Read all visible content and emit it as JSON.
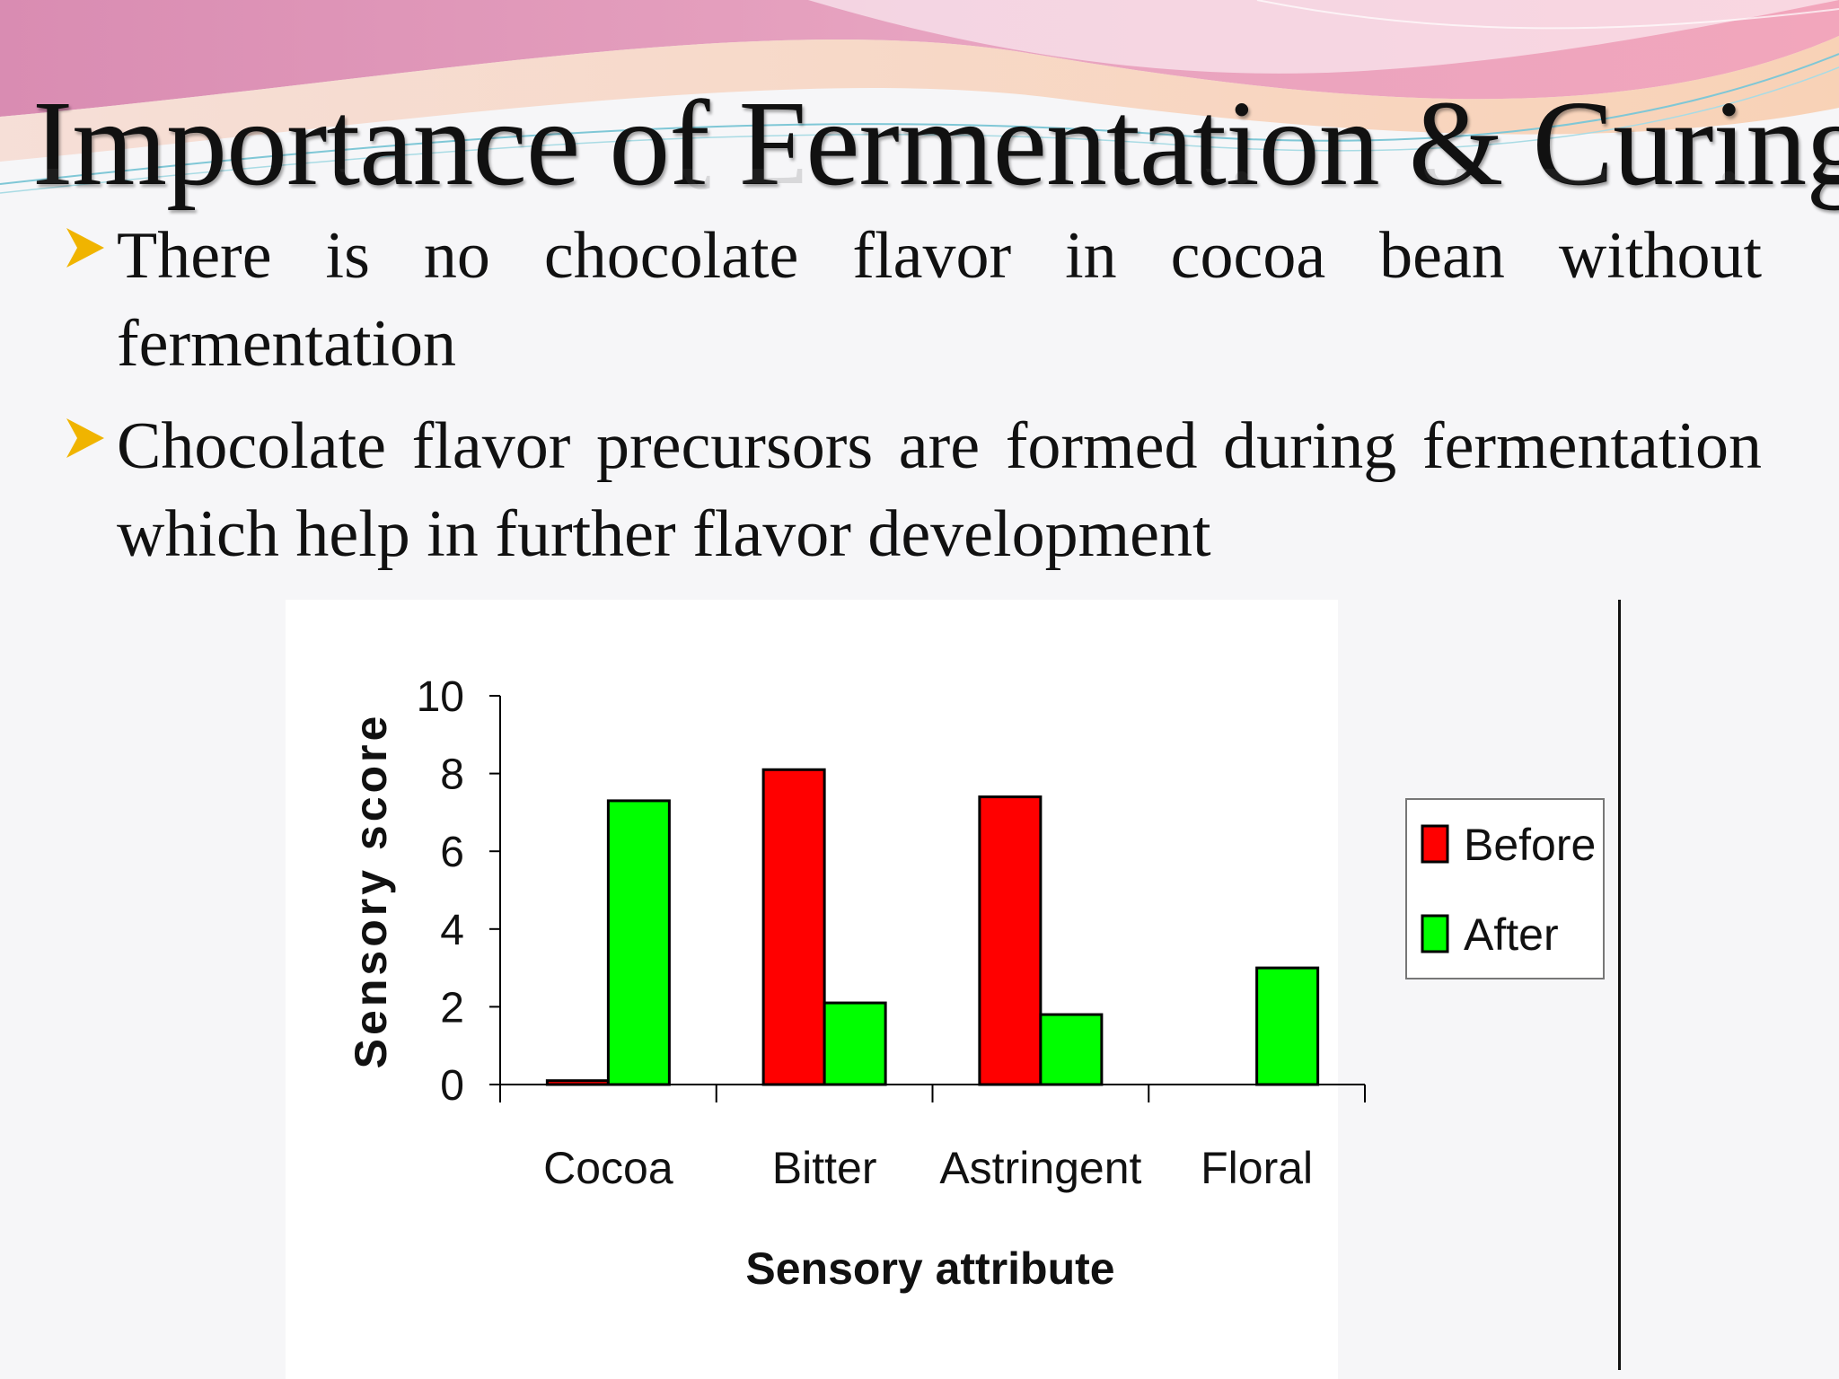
{
  "slide": {
    "title": "Importance of Fermentation & Curing",
    "bullets": [
      "There is no chocolate flavor in cocoa bean without fermentation",
      "Chocolate flavor precursors are formed during fermentation which help in further flavor development"
    ],
    "bullet_marker_color": "#f0b400"
  },
  "chart_data": {
    "type": "bar",
    "categories": [
      "Cocoa",
      "Bitter",
      "Astringent",
      "Floral"
    ],
    "series": [
      {
        "name": "Before",
        "values": [
          0.1,
          8.1,
          7.4,
          0
        ],
        "color": "#ff0000"
      },
      {
        "name": "After",
        "values": [
          7.3,
          2.1,
          1.8,
          3.0
        ],
        "color": "#00ff00"
      }
    ],
    "xlabel": "Sensory attribute",
    "ylabel": "Sensory score",
    "ylim": [
      0,
      10
    ],
    "yticks": [
      0,
      2,
      4,
      6,
      8,
      10
    ],
    "grid": false,
    "legend": "right"
  }
}
